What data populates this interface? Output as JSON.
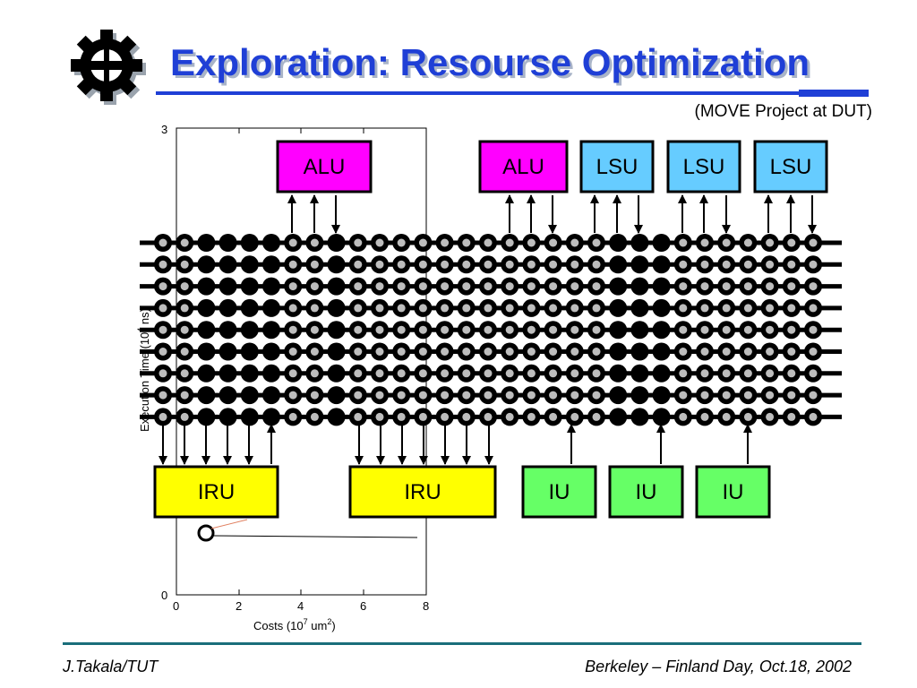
{
  "slide": {
    "title": "Exploration: Resourse Optimization",
    "subtitle": "(MOVE Project at DUT)",
    "footer_left": "J.Takala/TUT",
    "footer_right": "Berkeley – Finland Day,  Oct.18, 2002",
    "logo": "gear-logo-icon"
  },
  "colors": {
    "title": "#1f3fd6",
    "alu": "#ff00ff",
    "lsu": "#66ccff",
    "iru": "#ffff00",
    "iu": "#66ff66",
    "footer_rule": "#1a6e7a"
  },
  "background_plot": {
    "xlabel": "Costs (10",
    "xlabel_exp": "7",
    "xlabel_unit": " um",
    "xlabel_unit_exp": "2",
    "xlabel_close": ")",
    "ylabel": "Execution Time (10",
    "ylabel_exp": "4",
    "ylabel_unit": " ns)",
    "x_ticks": [
      "0",
      "2",
      "4",
      "6",
      "8"
    ],
    "y_ticks": [
      "0",
      "3"
    ]
  },
  "units": {
    "top": [
      {
        "label": "ALU",
        "type": "alu"
      },
      {
        "label": "ALU",
        "type": "alu"
      },
      {
        "label": "LSU",
        "type": "lsu"
      },
      {
        "label": "LSU",
        "type": "lsu"
      },
      {
        "label": "LSU",
        "type": "lsu"
      }
    ],
    "bottom": [
      {
        "label": "IRU",
        "type": "iru"
      },
      {
        "label": "IRU",
        "type": "iru"
      },
      {
        "label": "IU",
        "type": "iu"
      },
      {
        "label": "IU",
        "type": "iu"
      },
      {
        "label": "IU",
        "type": "iu"
      }
    ]
  },
  "interconnect": {
    "buses": 9,
    "sockets": 31
  }
}
